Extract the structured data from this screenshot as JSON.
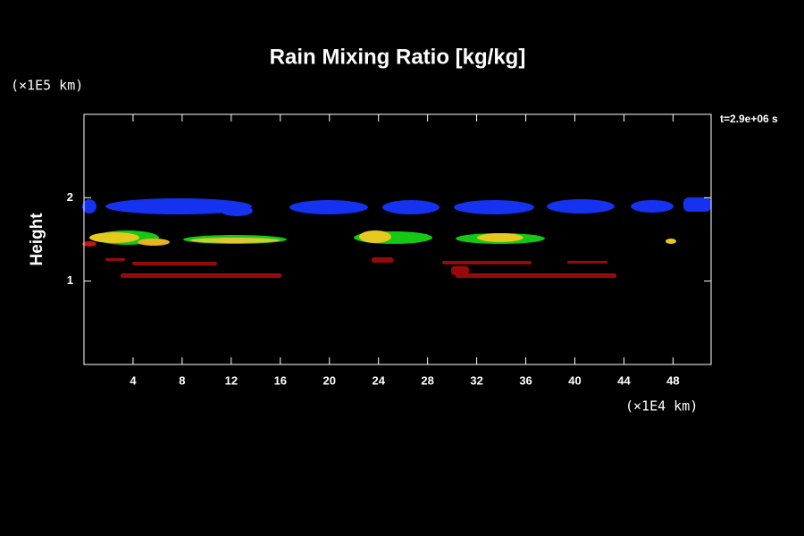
{
  "chart_data": {
    "type": "contour",
    "title": "Rain Mixing Ratio [kg/kg]",
    "ylabel": "Height",
    "x_unit_label": "(×1E4 km)",
    "y_unit_label": "(×1E5 km)",
    "annotation": "t=2.9e+06 s",
    "xlim": [
      0,
      51.1
    ],
    "xticks": [
      4,
      8,
      12,
      16,
      20,
      24,
      28,
      32,
      36,
      40,
      44,
      48
    ],
    "ylim": [
      0,
      3
    ],
    "yticks": [
      1,
      2
    ]
  }
}
